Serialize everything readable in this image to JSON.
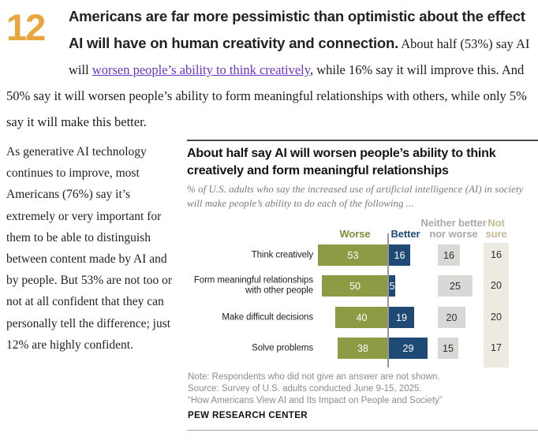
{
  "intro": {
    "number": "12",
    "heading": "Americans are far more pessimistic than optimistic about the effect AI will have on human creativity and connection.",
    "lead_in": " About half (53%) say AI will ",
    "link_text": "worsen people’s ability to think creatively",
    "tail": ", while 16% say it will improve this. And 50% say it will worsen people’s ability to form meaningful relationships with others, while only 5% say it will make this better."
  },
  "left_column": {
    "paragraph": "As generative AI technology continues to improve, most Americans (76%) say it’s extremely or very important for them to be able to distinguish between content made by AI and by people. But 53% are not too or not at all confident that they can personally tell the difference; just 12% are highly confident."
  },
  "chart": {
    "title": "About half say AI will worsen people’s ability to think creatively and form meaningful relationships",
    "subtitle": "% of U.S. adults who say the increased use of artificial intelligence (AI) in society will make people’s ability to do each of the following ...",
    "note": "Note: Respondents who did not give an answer are not shown.",
    "source": "Source: Survey of U.S. adults conducted June 9-15, 2025.",
    "citation": "“How Americans View AI and Its Impact on People and Society”",
    "brand": "PEW RESEARCH CENTER"
  },
  "colors": {
    "chapter_orange": "#eaa63c",
    "link_purple": "#6e32c8"
  },
  "chart_data": {
    "type": "bar",
    "variant": "horizontal diverging bars with neither/not-sure summary columns",
    "title": "About half say AI will worsen people’s ability to think creatively and form meaningful relationships",
    "categories": [
      "Think creatively",
      "Form meaningful relationships\nwith other people",
      "Make difficult decisions",
      "Solve problems"
    ],
    "series": [
      {
        "name": "Worse",
        "header_label": "Worse",
        "color": "#8c9b44",
        "header_color": "#7e8c39",
        "values": [
          53,
          50,
          40,
          38
        ]
      },
      {
        "name": "Better",
        "header_label": "Better",
        "color": "#1e4a75",
        "header_color": "#1e4a75",
        "values": [
          16,
          5,
          19,
          29
        ]
      },
      {
        "name": "Neither better nor worse",
        "header_label": "Neither better\nnor worse",
        "color": "#d8d8d6",
        "header_color": "#a8a8a8",
        "values": [
          16,
          25,
          20,
          15
        ]
      },
      {
        "name": "Not sure",
        "header_label": "Not\nsure",
        "color": "#edeae1",
        "header_color": "#c8ba8f",
        "values": [
          16,
          20,
          20,
          17
        ]
      }
    ],
    "value_labels_shown": true,
    "axis": "no numeric axis; values labeled on bars",
    "legend_position": "column headers above chart"
  }
}
